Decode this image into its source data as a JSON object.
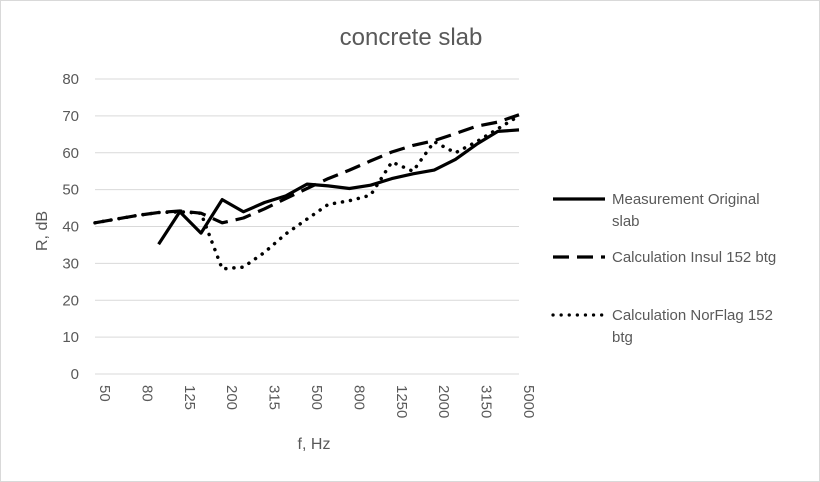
{
  "chart_data": {
    "type": "line",
    "title": "concrete slab",
    "xlabel": "f, Hz",
    "ylabel": "R, dB",
    "ylim": [
      0,
      80
    ],
    "y_ticks": [
      0,
      10,
      20,
      30,
      40,
      50,
      60,
      70,
      80
    ],
    "grid": true,
    "legend_position": "right",
    "categories": [
      "50",
      "63",
      "80",
      "100",
      "125",
      "160",
      "200",
      "250",
      "315",
      "400",
      "500",
      "630",
      "800",
      "1000",
      "1250",
      "1600",
      "2000",
      "2500",
      "3150",
      "4000",
      "5000"
    ],
    "x_tick_labels": [
      "50",
      "80",
      "125",
      "200",
      "315",
      "500",
      "800",
      "1250",
      "2000",
      "3150",
      "5000"
    ],
    "series": [
      {
        "name_lines": [
          "Measurement Original",
          "slab"
        ],
        "style": "solid",
        "values": [
          null,
          null,
          null,
          35.2,
          44.0,
          38.2,
          47.3,
          44.0,
          46.5,
          48.3,
          51.5,
          51.0,
          50.3,
          51.2,
          53.0,
          54.3,
          55.3,
          58.2,
          62.3,
          65.8,
          66.2
        ]
      },
      {
        "name_lines": [
          "Calculation Insul 152 btg"
        ],
        "style": "dashed",
        "values": [
          41.0,
          42.0,
          43.0,
          43.8,
          44.2,
          43.6,
          41.0,
          42.3,
          44.8,
          47.6,
          50.3,
          53.0,
          55.3,
          57.8,
          60.2,
          62.0,
          63.3,
          65.2,
          67.2,
          68.3,
          70.3
        ]
      },
      {
        "name_lines": [
          "Calculation NorFlag 152",
          "btg"
        ],
        "style": "dotted",
        "values": [
          41.0,
          42.0,
          43.0,
          43.8,
          44.0,
          43.6,
          28.5,
          29.0,
          33.0,
          38.0,
          42.0,
          46.0,
          47.0,
          48.5,
          57.5,
          55.0,
          63.0,
          60.0,
          63.0,
          66.5,
          70.0
        ]
      }
    ],
    "colors": {
      "series": "#000000",
      "grid": "#d9d9d9",
      "text": "#595959"
    }
  }
}
